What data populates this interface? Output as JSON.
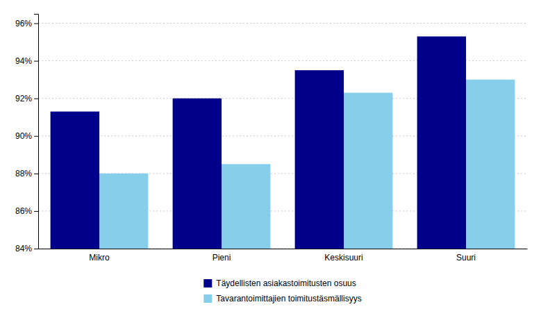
{
  "chart_data": {
    "type": "bar",
    "categories": [
      "Mikro",
      "Pieni",
      "Keskisuuri",
      "Suuri"
    ],
    "series": [
      {
        "name": "Täydellisten asiakastoimitusten osuus",
        "color": "#00008B",
        "values": [
          91.3,
          92.0,
          93.5,
          95.3
        ]
      },
      {
        "name": "Tavarantoimittajien toimitustäsmällisyys",
        "color": "#87CEEB",
        "values": [
          88.0,
          88.5,
          92.3,
          93.0
        ]
      }
    ],
    "ylim": [
      84,
      96.5
    ],
    "yticks": [
      {
        "value": 84,
        "label": "84%"
      },
      {
        "value": 86,
        "label": "86%"
      },
      {
        "value": 88,
        "label": "88%"
      },
      {
        "value": 90,
        "label": "90%"
      },
      {
        "value": 92,
        "label": "92%"
      },
      {
        "value": 94,
        "label": "94%"
      },
      {
        "value": 96,
        "label": "96%"
      }
    ],
    "grid": true,
    "legend": "bottom"
  }
}
